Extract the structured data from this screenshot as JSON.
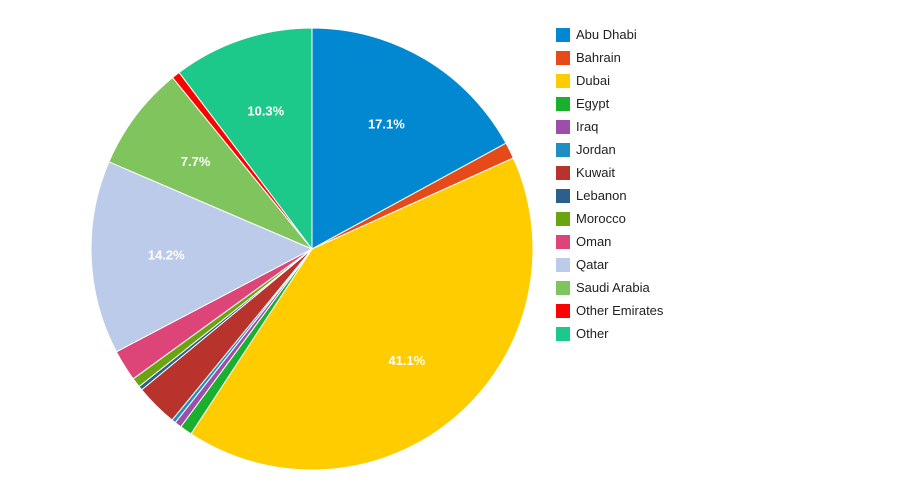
{
  "chart_data": {
    "type": "pie",
    "title": "",
    "start_angle_deg": 0,
    "categories": [
      "Abu Dhabi",
      "Bahrain",
      "Dubai",
      "Egypt",
      "Iraq",
      "Jordan",
      "Kuwait",
      "Lebanon",
      "Morocco",
      "Oman",
      "Qatar",
      "Saudi Arabia",
      "Other Emirates",
      "Other"
    ],
    "values": [
      17.1,
      1.2,
      41.1,
      0.9,
      0.5,
      0.3,
      3.1,
      0.3,
      0.7,
      2.3,
      14.2,
      7.7,
      0.6,
      10.3
    ],
    "colors": [
      "#0288d1",
      "#e64a19",
      "#ffcc00",
      "#1aaf2d",
      "#9c4ea8",
      "#1f8fc2",
      "#b8332b",
      "#2b5f8c",
      "#6aa40f",
      "#dd4477",
      "#bccbea",
      "#80c45e",
      "#ff0000",
      "#1cc98b"
    ],
    "data_labels": [
      "17.1%",
      "",
      "41.1%",
      "",
      "",
      "",
      "",
      "",
      "",
      "",
      "14.2%",
      "7.7%",
      "",
      "10.3%"
    ],
    "legend_position": "right"
  }
}
